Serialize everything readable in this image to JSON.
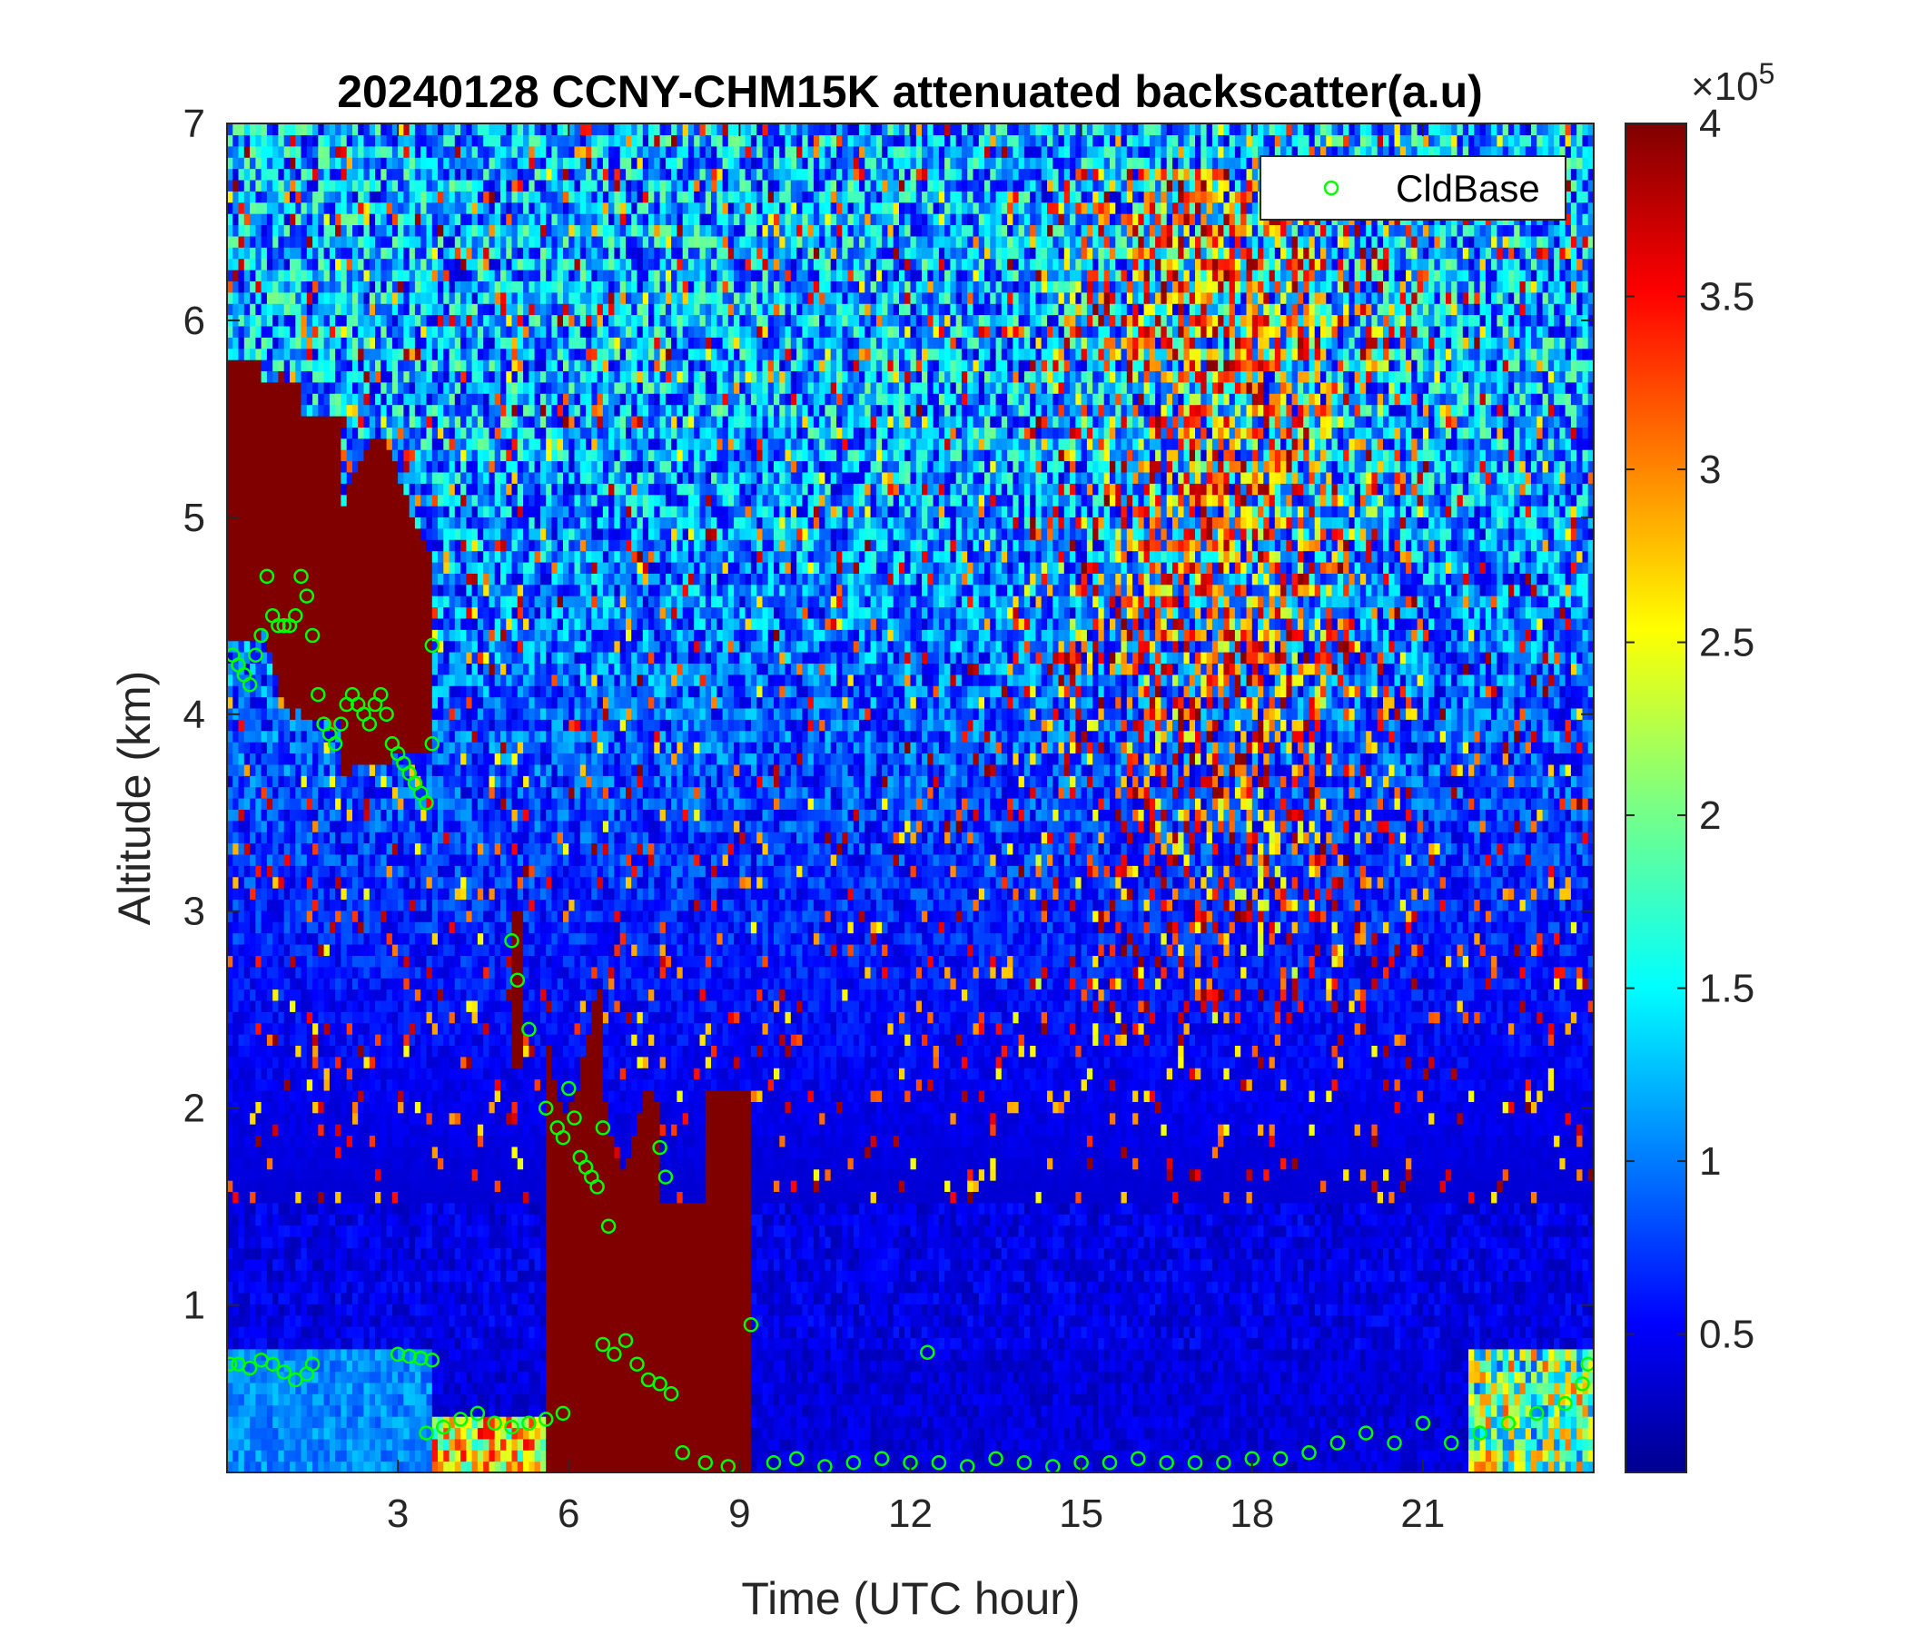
{
  "chart_data": {
    "type": "heatmap",
    "title": "20240128 CCNY-CHM15K attenuated backscatter(a.u)",
    "xlabel": "Time (UTC hour)",
    "ylabel": "Altitude (km)",
    "xlim": [
      0,
      24
    ],
    "ylim": [
      0.15,
      7
    ],
    "xticks": [
      3,
      6,
      9,
      12,
      15,
      18,
      21
    ],
    "yticks": [
      1,
      2,
      3,
      4,
      5,
      6,
      7
    ],
    "colorbar": {
      "colormap": "jet",
      "clim": [
        0.1,
        4
      ],
      "ticks": [
        0.5,
        1,
        1.5,
        2,
        2.5,
        3,
        3.5,
        4
      ],
      "multiplier_base": "×10",
      "multiplier_exponent": "5"
    },
    "legend": {
      "location": "top-right",
      "entries": [
        "CldBase"
      ]
    },
    "series": [
      {
        "name": "CldBase",
        "marker": "circle",
        "color": "#00ff00",
        "x": [
          0.1,
          0.2,
          0.3,
          0.4,
          0.5,
          0.6,
          0.7,
          0.8,
          0.9,
          1.0,
          1.1,
          1.2,
          1.3,
          1.4,
          1.5,
          1.6,
          1.7,
          1.8,
          1.9,
          2.0,
          2.1,
          2.2,
          2.3,
          2.4,
          2.5,
          2.6,
          2.7,
          2.8,
          2.9,
          3.0,
          3.1,
          3.2,
          3.3,
          3.4,
          3.5,
          3.6,
          3.6,
          0.05,
          0.2,
          0.4,
          0.6,
          0.8,
          1.0,
          1.2,
          1.4,
          1.5,
          3.0,
          3.2,
          3.4,
          3.6,
          3.5,
          3.8,
          4.1,
          4.4,
          4.7,
          5.0,
          5.3,
          5.6,
          5.9,
          5.0,
          5.1,
          5.3,
          5.6,
          5.8,
          5.9,
          6.0,
          6.1,
          6.2,
          6.3,
          6.4,
          6.5,
          6.6,
          6.7,
          6.6,
          6.8,
          7.0,
          7.2,
          7.4,
          7.6,
          7.8,
          7.6,
          7.7,
          8.0,
          8.4,
          8.8,
          9.2,
          9.6,
          10.0,
          10.5,
          11.0,
          11.5,
          12.0,
          12.3,
          12.5,
          13.0,
          13.5,
          14.0,
          14.5,
          15.0,
          15.5,
          16.0,
          16.5,
          17.0,
          17.5,
          18.0,
          18.5,
          19.0,
          19.5,
          20.0,
          20.5,
          21.0,
          21.5,
          22.0,
          22.5,
          23.0,
          23.5,
          23.8,
          23.9
        ],
        "y": [
          4.3,
          4.25,
          4.2,
          4.15,
          4.3,
          4.4,
          4.7,
          4.5,
          4.45,
          4.45,
          4.45,
          4.5,
          4.7,
          4.6,
          4.4,
          4.1,
          3.95,
          3.9,
          3.85,
          3.95,
          4.05,
          4.1,
          4.05,
          4.0,
          3.95,
          4.05,
          4.1,
          4.0,
          3.85,
          3.8,
          3.75,
          3.7,
          3.65,
          3.6,
          3.55,
          3.85,
          4.35,
          0.7,
          0.7,
          0.68,
          0.72,
          0.7,
          0.66,
          0.62,
          0.65,
          0.7,
          0.75,
          0.74,
          0.73,
          0.72,
          0.35,
          0.38,
          0.42,
          0.45,
          0.4,
          0.38,
          0.4,
          0.42,
          0.45,
          2.85,
          2.65,
          2.4,
          2.0,
          1.9,
          1.85,
          2.1,
          1.95,
          1.75,
          1.7,
          1.65,
          1.6,
          1.9,
          1.4,
          0.8,
          0.75,
          0.82,
          0.7,
          0.62,
          0.6,
          0.55,
          1.8,
          1.65,
          0.25,
          0.2,
          0.18,
          0.9,
          0.2,
          0.22,
          0.18,
          0.2,
          0.22,
          0.2,
          0.76,
          0.2,
          0.18,
          0.22,
          0.2,
          0.18,
          0.2,
          0.2,
          0.22,
          0.2,
          0.2,
          0.2,
          0.22,
          0.22,
          0.25,
          0.3,
          0.35,
          0.3,
          0.4,
          0.3,
          0.35,
          0.4,
          0.45,
          0.5,
          0.6,
          0.7
        ]
      }
    ],
    "field_notes": {
      "high_signal_regions": "cloud above 3.5-5.8 km before 3.6 h; cloud 1.5-2.6 km between 5.8-9.2 h; boundary layer below 0.8 km",
      "noise": "noisy mid-level signal 15-21 h"
    }
  }
}
